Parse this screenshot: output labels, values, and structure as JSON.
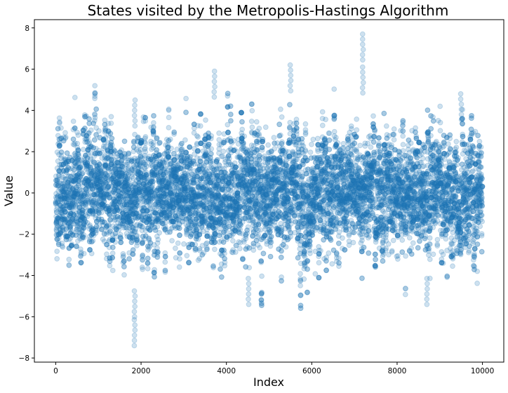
{
  "chart_data": {
    "type": "scatter",
    "title": "States visited by the Metropolis-Hastings Algorithm",
    "xlabel": "Index",
    "ylabel": "Value",
    "xlim": [
      -500,
      10500
    ],
    "ylim": [
      -8.2,
      8.4
    ],
    "xticks": [
      0,
      2000,
      4000,
      6000,
      8000,
      10000
    ],
    "yticks": [
      -8,
      -6,
      -4,
      -2,
      0,
      2,
      4,
      6,
      8
    ],
    "grid": false,
    "legend": "none",
    "point_color": "#1f77b4",
    "point_alpha": 0.22,
    "n_points": 10000,
    "distribution": "approximately standard normal, mean 0, sd 1.5, autocorrelated random-walk chain",
    "notable_points": [
      {
        "x": 1850,
        "y": -7.4
      },
      {
        "x": 1850,
        "y": -6.0
      },
      {
        "x": 1850,
        "y": 4.5
      },
      {
        "x": 3720,
        "y": 5.9
      },
      {
        "x": 5500,
        "y": 6.2
      },
      {
        "x": 7200,
        "y": 7.7
      },
      {
        "x": 7200,
        "y": 6.1
      },
      {
        "x": 8700,
        "y": -5.4
      },
      {
        "x": 4520,
        "y": -5.4
      },
      {
        "x": 9500,
        "y": 4.8
      }
    ]
  }
}
